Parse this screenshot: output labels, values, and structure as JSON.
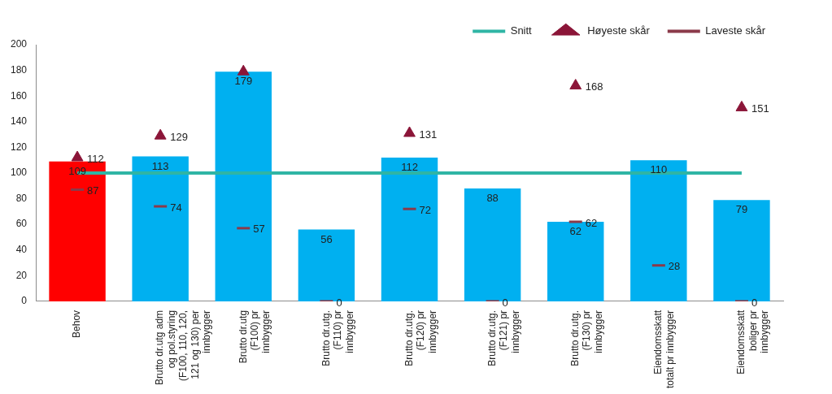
{
  "chart_data": {
    "type": "bar",
    "categories": [
      "Behov",
      "Brutto dr.utg adm\nog pol.styring\n(F100, 110, 120,\n121 og 130) per\ninnbygger",
      "Brutto dr.utg\n(F100) pr\ninnbygger",
      "Brutto dr.utg.\n(F110) pr\ninnbygger",
      "Brutto dr.utg.\n(F120) pr\ninnbygger",
      "Brutto dr.utg.\n(F121) pr\ninnbygger",
      "Brutto dr.utg.\n(F130) pr\ninnbygger",
      "Eiendomsskatt\ntotalt pr innbygger",
      "Eiendomsskatt\nboliger pr\ninnbygger"
    ],
    "values": [
      109,
      113,
      179,
      56,
      112,
      88,
      62,
      110,
      79
    ],
    "colors": [
      "#ff0000",
      "#00b0f0",
      "#00b0f0",
      "#00b0f0",
      "#00b0f0",
      "#00b0f0",
      "#00b0f0",
      "#00b0f0",
      "#00b0f0"
    ],
    "series": [
      {
        "name": "Snitt",
        "type": "line",
        "color": "#2fb5a5",
        "line_style": "solid",
        "values": [
          100,
          100,
          100,
          100,
          100,
          100,
          100,
          100,
          100
        ],
        "value_labels": [
          null,
          null,
          null,
          null,
          null,
          null,
          null,
          null,
          null
        ]
      },
      {
        "name": "Høyeste skår",
        "type": "scatter",
        "marker": "triangle",
        "color": "#8b1538",
        "values": [
          112,
          129,
          179,
          null,
          131,
          null,
          168,
          null,
          151
        ],
        "value_labels": [
          "112",
          "129",
          null,
          null,
          "131",
          null,
          "168",
          null,
          "151"
        ]
      },
      {
        "name": "Laveste skår",
        "type": "scatter",
        "marker": "dash",
        "color": "#8b3a4a",
        "values": [
          87,
          74,
          57,
          0,
          72,
          0,
          62,
          28,
          0
        ]
      }
    ],
    "ylim": [
      0,
      200
    ],
    "yticks": [
      0,
      20,
      40,
      60,
      80,
      100,
      120,
      140,
      160,
      180,
      200
    ],
    "grid": false,
    "legend": "top-right",
    "data_labels": true
  }
}
